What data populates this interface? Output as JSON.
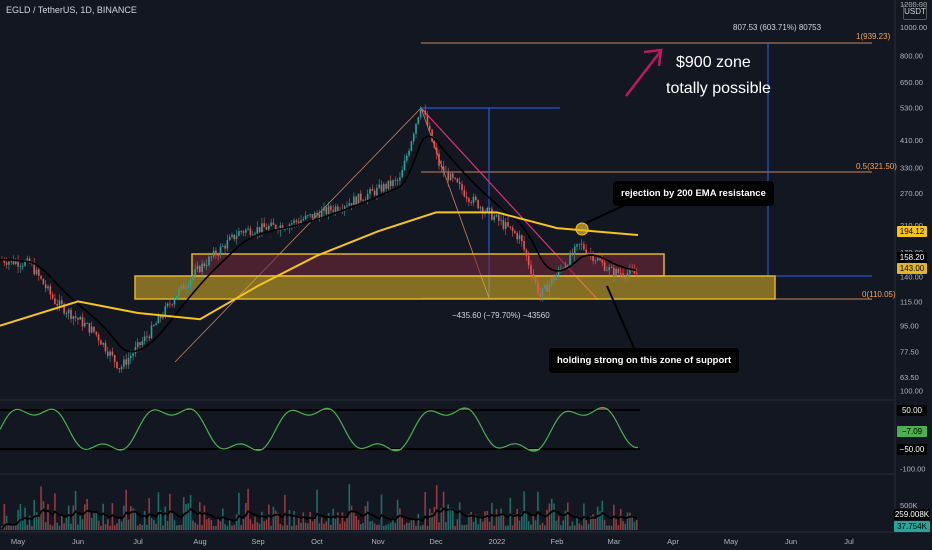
{
  "header": {
    "symbol": "EGLD / TetherUS, 1D, BINANCE",
    "currency": "USDT"
  },
  "annotations": {
    "measure_top": "807.53 (603.71%) 80753",
    "measure_bottom": "−435.60 (−79.70%) −43560",
    "fib_1": "1(939.23)",
    "fib_05": "0.5(321.50)",
    "fib_0": "0(110.05)",
    "callout_line1": "$900 zone",
    "callout_line2": "totally possible",
    "note_ema": "rejection by 200 EMA resistance",
    "note_support": "holding strong on this zone of support"
  },
  "price_tags": {
    "ema200": "194.12",
    "last_high": "158.20",
    "last": "143.00"
  },
  "indicator_tags": {
    "level_upper": "50.00",
    "value": "−7.09",
    "level_lower": "−50.00"
  },
  "volume_tags": {
    "volume": "259.008K",
    "volume_ma": "37.754K"
  },
  "colors": {
    "background": "#131722",
    "up": "#26a69a",
    "down": "#ef5350",
    "ema200": "#f5c518",
    "ema_black": "#000000",
    "zone_fill": "#e0b626",
    "resistance_box": "#7a2a3a",
    "fib_line": "#c98560",
    "measure_line": "#2962ff",
    "arrow": "#c2185b",
    "oscillator": "#4caf50",
    "oscillator_top": "#a83240"
  },
  "chart_data": [
    {
      "type": "candlestick",
      "title": "EGLD / TetherUS, 1D, BINANCE",
      "y_scale": "log",
      "y_ticks": [
        "1200.00",
        "1000.00",
        "800.00",
        "650.00",
        "530.00",
        "410.00",
        "330.00",
        "270.00",
        "210.00",
        "170.00",
        "140.00",
        "115.00",
        "95.00",
        "77.50",
        "63.50"
      ],
      "x_ticks": [
        "May",
        "Jun",
        "Jul",
        "Aug",
        "Sep",
        "Oct",
        "Nov",
        "Dec",
        "2022",
        "Feb",
        "Mar",
        "Apr",
        "May",
        "Jun",
        "Jul"
      ],
      "price_path": [
        [
          "May",
          160
        ],
        [
          "Jun",
          155
        ],
        [
          "Jun",
          115
        ],
        [
          "Jul",
          90
        ],
        [
          "Jul",
          68
        ],
        [
          "Aug",
          90
        ],
        [
          "Aug",
          120
        ],
        [
          "Sep",
          150
        ],
        [
          "Sep",
          200
        ],
        [
          "Oct",
          210
        ],
        [
          "Oct",
          230
        ],
        [
          "Nov",
          260
        ],
        [
          "Nov",
          300
        ],
        [
          "Dec",
          545
        ],
        [
          "Dec",
          330
        ],
        [
          "2022",
          260
        ],
        [
          "2022",
          190
        ],
        [
          "Feb",
          120
        ],
        [
          "Feb",
          180
        ],
        [
          "Mar",
          145
        ],
        [
          "Mar",
          143
        ]
      ],
      "ema200_path": [
        [
          "May",
          95
        ],
        [
          "Jun",
          115
        ],
        [
          "Jul",
          105
        ],
        [
          "Aug",
          100
        ],
        [
          "Sep",
          130
        ],
        [
          "Oct",
          165
        ],
        [
          "Nov",
          200
        ],
        [
          "Dec",
          232
        ],
        [
          "2022",
          232
        ],
        [
          "Feb",
          205
        ],
        [
          "Mar",
          194.12
        ]
      ],
      "levels": {
        "fib_1": 939.23,
        "fib_05": 321.5,
        "fib_0": 110.05
      },
      "zones": [
        {
          "name": "resistance box",
          "low": 140,
          "high": 168
        },
        {
          "name": "support zone",
          "low": 110.05,
          "high": 140
        }
      ],
      "last_price": 143.0,
      "ema200_value": 194.12
    },
    {
      "type": "line",
      "name": "oscillator",
      "y_ticks": [
        "100.00",
        "50.00",
        "-50.00",
        "-100.00"
      ],
      "levels": [
        50,
        -50
      ],
      "last_value": -7.09
    },
    {
      "type": "bar",
      "name": "volume",
      "y_ticks": [
        "500K"
      ],
      "last_value": "259.008K",
      "ma_value": "37.754K"
    }
  ]
}
